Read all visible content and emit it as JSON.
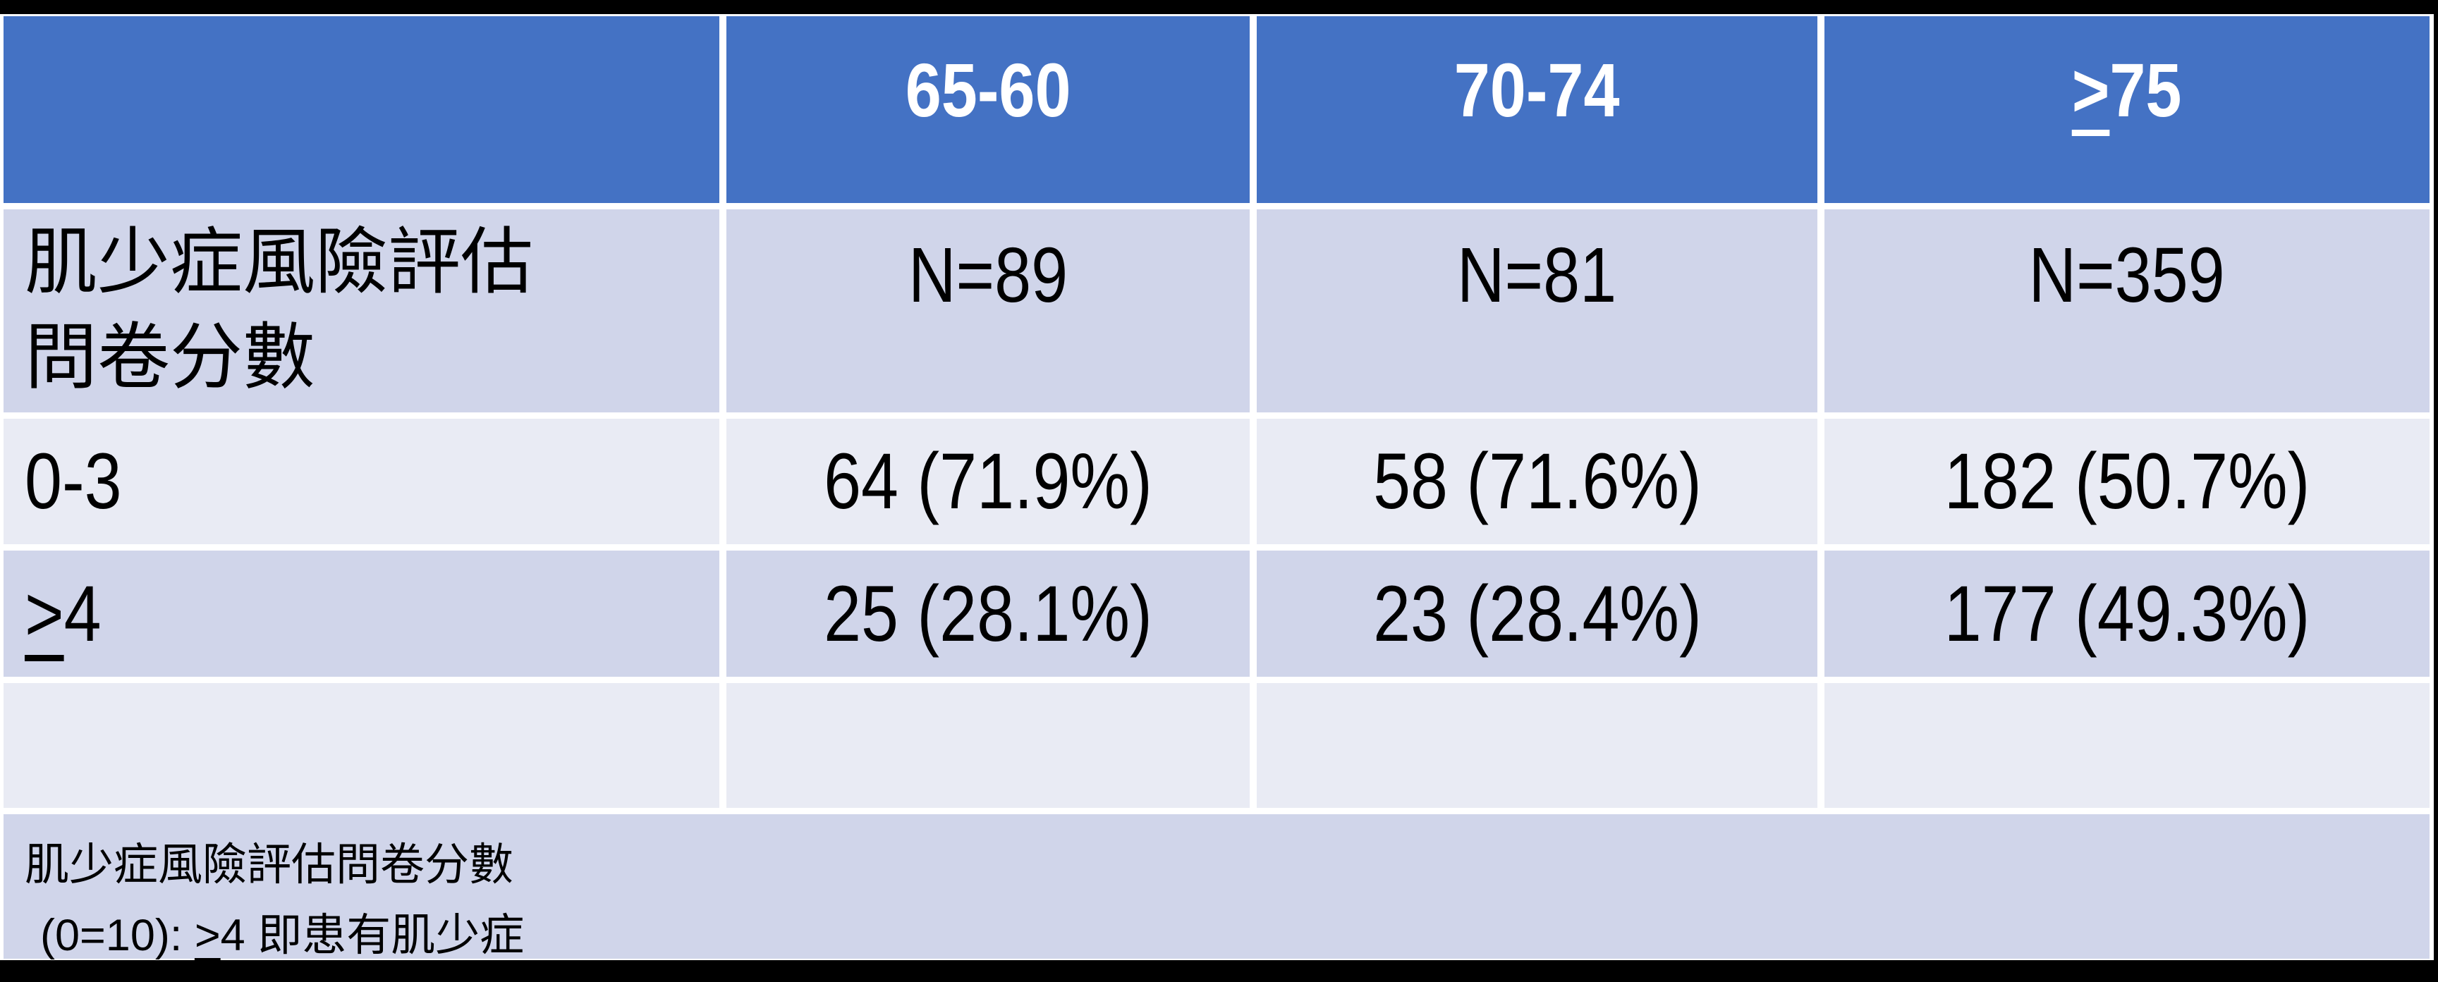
{
  "colors": {
    "header_bg": "#4472C4",
    "band_dark": "#D0D5EA",
    "band_light": "#E9EBF4",
    "header_text": "#FFFFFF",
    "body_text": "#000000",
    "grid_border": "#FFFFFF",
    "frame": "#000000"
  },
  "table": {
    "header": {
      "corner": "",
      "cells": [
        {
          "gte": "",
          "label": "65-60"
        },
        {
          "gte": "",
          "label": "70-74"
        },
        {
          "gte": ">",
          "label": "75"
        }
      ]
    },
    "subheader": {
      "label_line1": "肌少症風險評估",
      "label_line2": "問卷分數",
      "cells": [
        {
          "value": "N=89"
        },
        {
          "value": "N=81"
        },
        {
          "value": "N=359"
        }
      ]
    },
    "rows": [
      {
        "gte": "",
        "label": "0-3",
        "cells": [
          {
            "value": "64 (71.9%)"
          },
          {
            "value": "58 (71.6%)"
          },
          {
            "value": "182 (50.7%)"
          }
        ]
      },
      {
        "gte": ">",
        "label": "4",
        "cells": [
          {
            "value": "25 (28.1%)"
          },
          {
            "value": "23 (28.4%)"
          },
          {
            "value": "177 (49.3%)"
          }
        ]
      }
    ],
    "footnote": {
      "line1": "肌少症風險評估問卷分數",
      "line2_prefix": "(0=10): ",
      "line2_gte": ">",
      "line2_suffix": "4 即患有肌少症"
    }
  },
  "chart_data": {
    "type": "table",
    "columns": [
      "",
      "65-60",
      "70-74",
      "≥75"
    ],
    "rows": [
      [
        "肌少症風險評估問卷分數",
        "N=89",
        "N=81",
        "N=359"
      ],
      [
        "0-3",
        "64 (71.9%)",
        "58 (71.6%)",
        "182 (50.7%)"
      ],
      [
        "≥4",
        "25 (28.1%)",
        "23 (28.4%)",
        "177 (49.3%)"
      ]
    ],
    "footnote": "肌少症風險評估問卷分數 (0=10): ≥4 即患有肌少症"
  }
}
